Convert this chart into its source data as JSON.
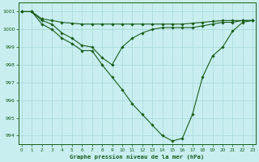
{
  "title": "Graphe pression niveau de la mer (hPa)",
  "background_color": "#c8eef0",
  "grid_color": "#a8d8d8",
  "line_color": "#1a5c1a",
  "marker_color": "#1a5c1a",
  "xlim": [
    -0.3,
    23.3
  ],
  "ylim": [
    993.5,
    1001.5
  ],
  "yticks": [
    994,
    995,
    996,
    997,
    998,
    999,
    1000,
    1001
  ],
  "xticks": [
    0,
    1,
    2,
    3,
    4,
    5,
    6,
    7,
    8,
    9,
    10,
    11,
    12,
    13,
    14,
    15,
    16,
    17,
    18,
    19,
    20,
    21,
    22,
    23
  ],
  "series1": [
    1001.0,
    1001.0,
    1000.3,
    1000.0,
    999.5,
    999.2,
    998.8,
    998.8,
    998.0,
    997.3,
    996.6,
    995.8,
    995.2,
    994.6,
    994.0,
    993.7,
    993.85,
    995.2,
    997.3,
    998.5,
    999.0,
    999.9,
    1000.4,
    1000.5
  ],
  "series2": [
    1001.0,
    1001.0,
    1000.5,
    1000.3,
    999.8,
    999.5,
    999.1,
    999.0,
    998.4,
    998.0,
    999.0,
    999.5,
    999.8,
    1000.0,
    1000.1,
    1000.1,
    1000.1,
    1000.1,
    1000.2,
    1000.3,
    1000.4,
    1000.4,
    1000.5,
    1000.5
  ],
  "series3": [
    1001.0,
    1001.0,
    1000.6,
    1000.5,
    1000.4,
    1000.35,
    1000.3,
    1000.3,
    1000.3,
    1000.3,
    1000.3,
    1000.3,
    1000.3,
    1000.3,
    1000.3,
    1000.3,
    1000.3,
    1000.35,
    1000.4,
    1000.45,
    1000.5,
    1000.5,
    1000.5,
    1000.5
  ]
}
